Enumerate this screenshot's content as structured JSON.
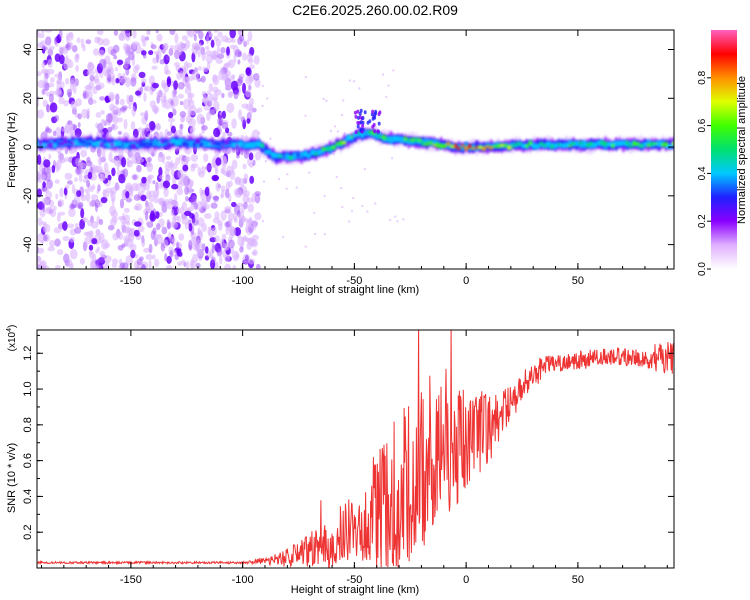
{
  "title": "C2E6.2025.260.00.02.R09",
  "colors": {
    "snr_line": "#ee3333",
    "axis": "#000000",
    "background": "#ffffff",
    "noise": "#8a2be2"
  },
  "chart_data": [
    {
      "type": "heatmap",
      "name": "spectrogram",
      "xlabel": "Height of straight line (km)",
      "ylabel": "Frequency (Hz)",
      "xlim": [
        -192,
        93
      ],
      "ylim": [
        -50,
        48
      ],
      "xticks": [
        -150,
        -100,
        -50,
        0,
        50
      ],
      "xtick_labels": [
        "-150",
        "-100",
        "-50",
        "0",
        "50"
      ],
      "yticks": [
        -40,
        -20,
        0,
        20,
        40
      ],
      "ytick_labels": [
        "-40",
        "-20",
        "0",
        "20",
        "40"
      ],
      "colorbar": {
        "label": "Normalized spectral amplitude",
        "range": [
          0,
          1
        ],
        "ticks": [
          0.0,
          0.2,
          0.4,
          0.6,
          0.8
        ],
        "tick_labels": [
          "0.0",
          "0.2",
          "0.4",
          "0.6",
          "0.8"
        ],
        "colormap": [
          "#ffffff",
          "#e0b0ff",
          "#8a00ff",
          "#2020ff",
          "#00c8ff",
          "#00e070",
          "#40ff00",
          "#e0ff00",
          "#ff9000",
          "#ff0000",
          "#ff60c0"
        ]
      },
      "noise_region_x": [
        -192,
        -93
      ],
      "signal_trace": {
        "x": [
          -192,
          -170,
          -150,
          -130,
          -110,
          -93,
          -85,
          -75,
          -65,
          -55,
          -48,
          -42,
          -38,
          -30,
          -20,
          -10,
          -5,
          0,
          10,
          30,
          60,
          93
        ],
        "freq": [
          1,
          2,
          1,
          2,
          1,
          1,
          -4,
          -4,
          -2,
          2,
          5,
          6,
          4,
          3,
          2,
          1,
          0,
          0,
          0,
          1,
          1,
          1
        ],
        "amplitude": [
          0.3,
          0.3,
          0.3,
          0.3,
          0.3,
          0.35,
          0.4,
          0.45,
          0.5,
          0.55,
          0.5,
          0.45,
          0.5,
          0.5,
          0.55,
          0.6,
          0.8,
          0.9,
          0.7,
          0.5,
          0.5,
          0.55
        ]
      }
    },
    {
      "type": "line",
      "name": "snr",
      "xlabel": "Height of straight line (km)",
      "ylabel": "SNR (10 * v/v)",
      "y_multiplier": "(x10",
      "y_multiplier_exp": "4",
      "y_multiplier_close": ")",
      "xlim": [
        -192,
        93
      ],
      "ylim": [
        0,
        1.33
      ],
      "xticks": [
        -150,
        -100,
        -50,
        0,
        50
      ],
      "xtick_labels": [
        "-150",
        "-100",
        "-50",
        "0",
        "50"
      ],
      "yticks": [
        0.2,
        0.4,
        0.6,
        0.8,
        1.0,
        1.2
      ],
      "ytick_labels": [
        "0.2",
        "0.4",
        "0.6",
        "0.8",
        "1.0",
        "1.2"
      ],
      "x": [
        -192,
        -170,
        -150,
        -130,
        -110,
        -100,
        -90,
        -80,
        -70,
        -60,
        -50,
        -40,
        -30,
        -20,
        -10,
        0,
        10,
        20,
        30,
        40,
        50,
        60,
        70,
        80,
        93
      ],
      "y": [
        0.03,
        0.03,
        0.03,
        0.03,
        0.03,
        0.03,
        0.04,
        0.06,
        0.1,
        0.15,
        0.22,
        0.32,
        0.42,
        0.55,
        0.62,
        0.7,
        0.78,
        0.92,
        1.08,
        1.14,
        1.16,
        1.18,
        1.18,
        1.18,
        1.17
      ],
      "noise_amplitude": [
        0.0,
        0.0,
        0.0,
        0.0,
        0.0,
        0.0,
        0.02,
        0.05,
        0.1,
        0.15,
        0.2,
        0.35,
        0.45,
        0.45,
        0.35,
        0.3,
        0.2,
        0.1,
        0.08,
        0.06,
        0.05,
        0.05,
        0.05,
        0.06,
        0.1
      ]
    }
  ]
}
